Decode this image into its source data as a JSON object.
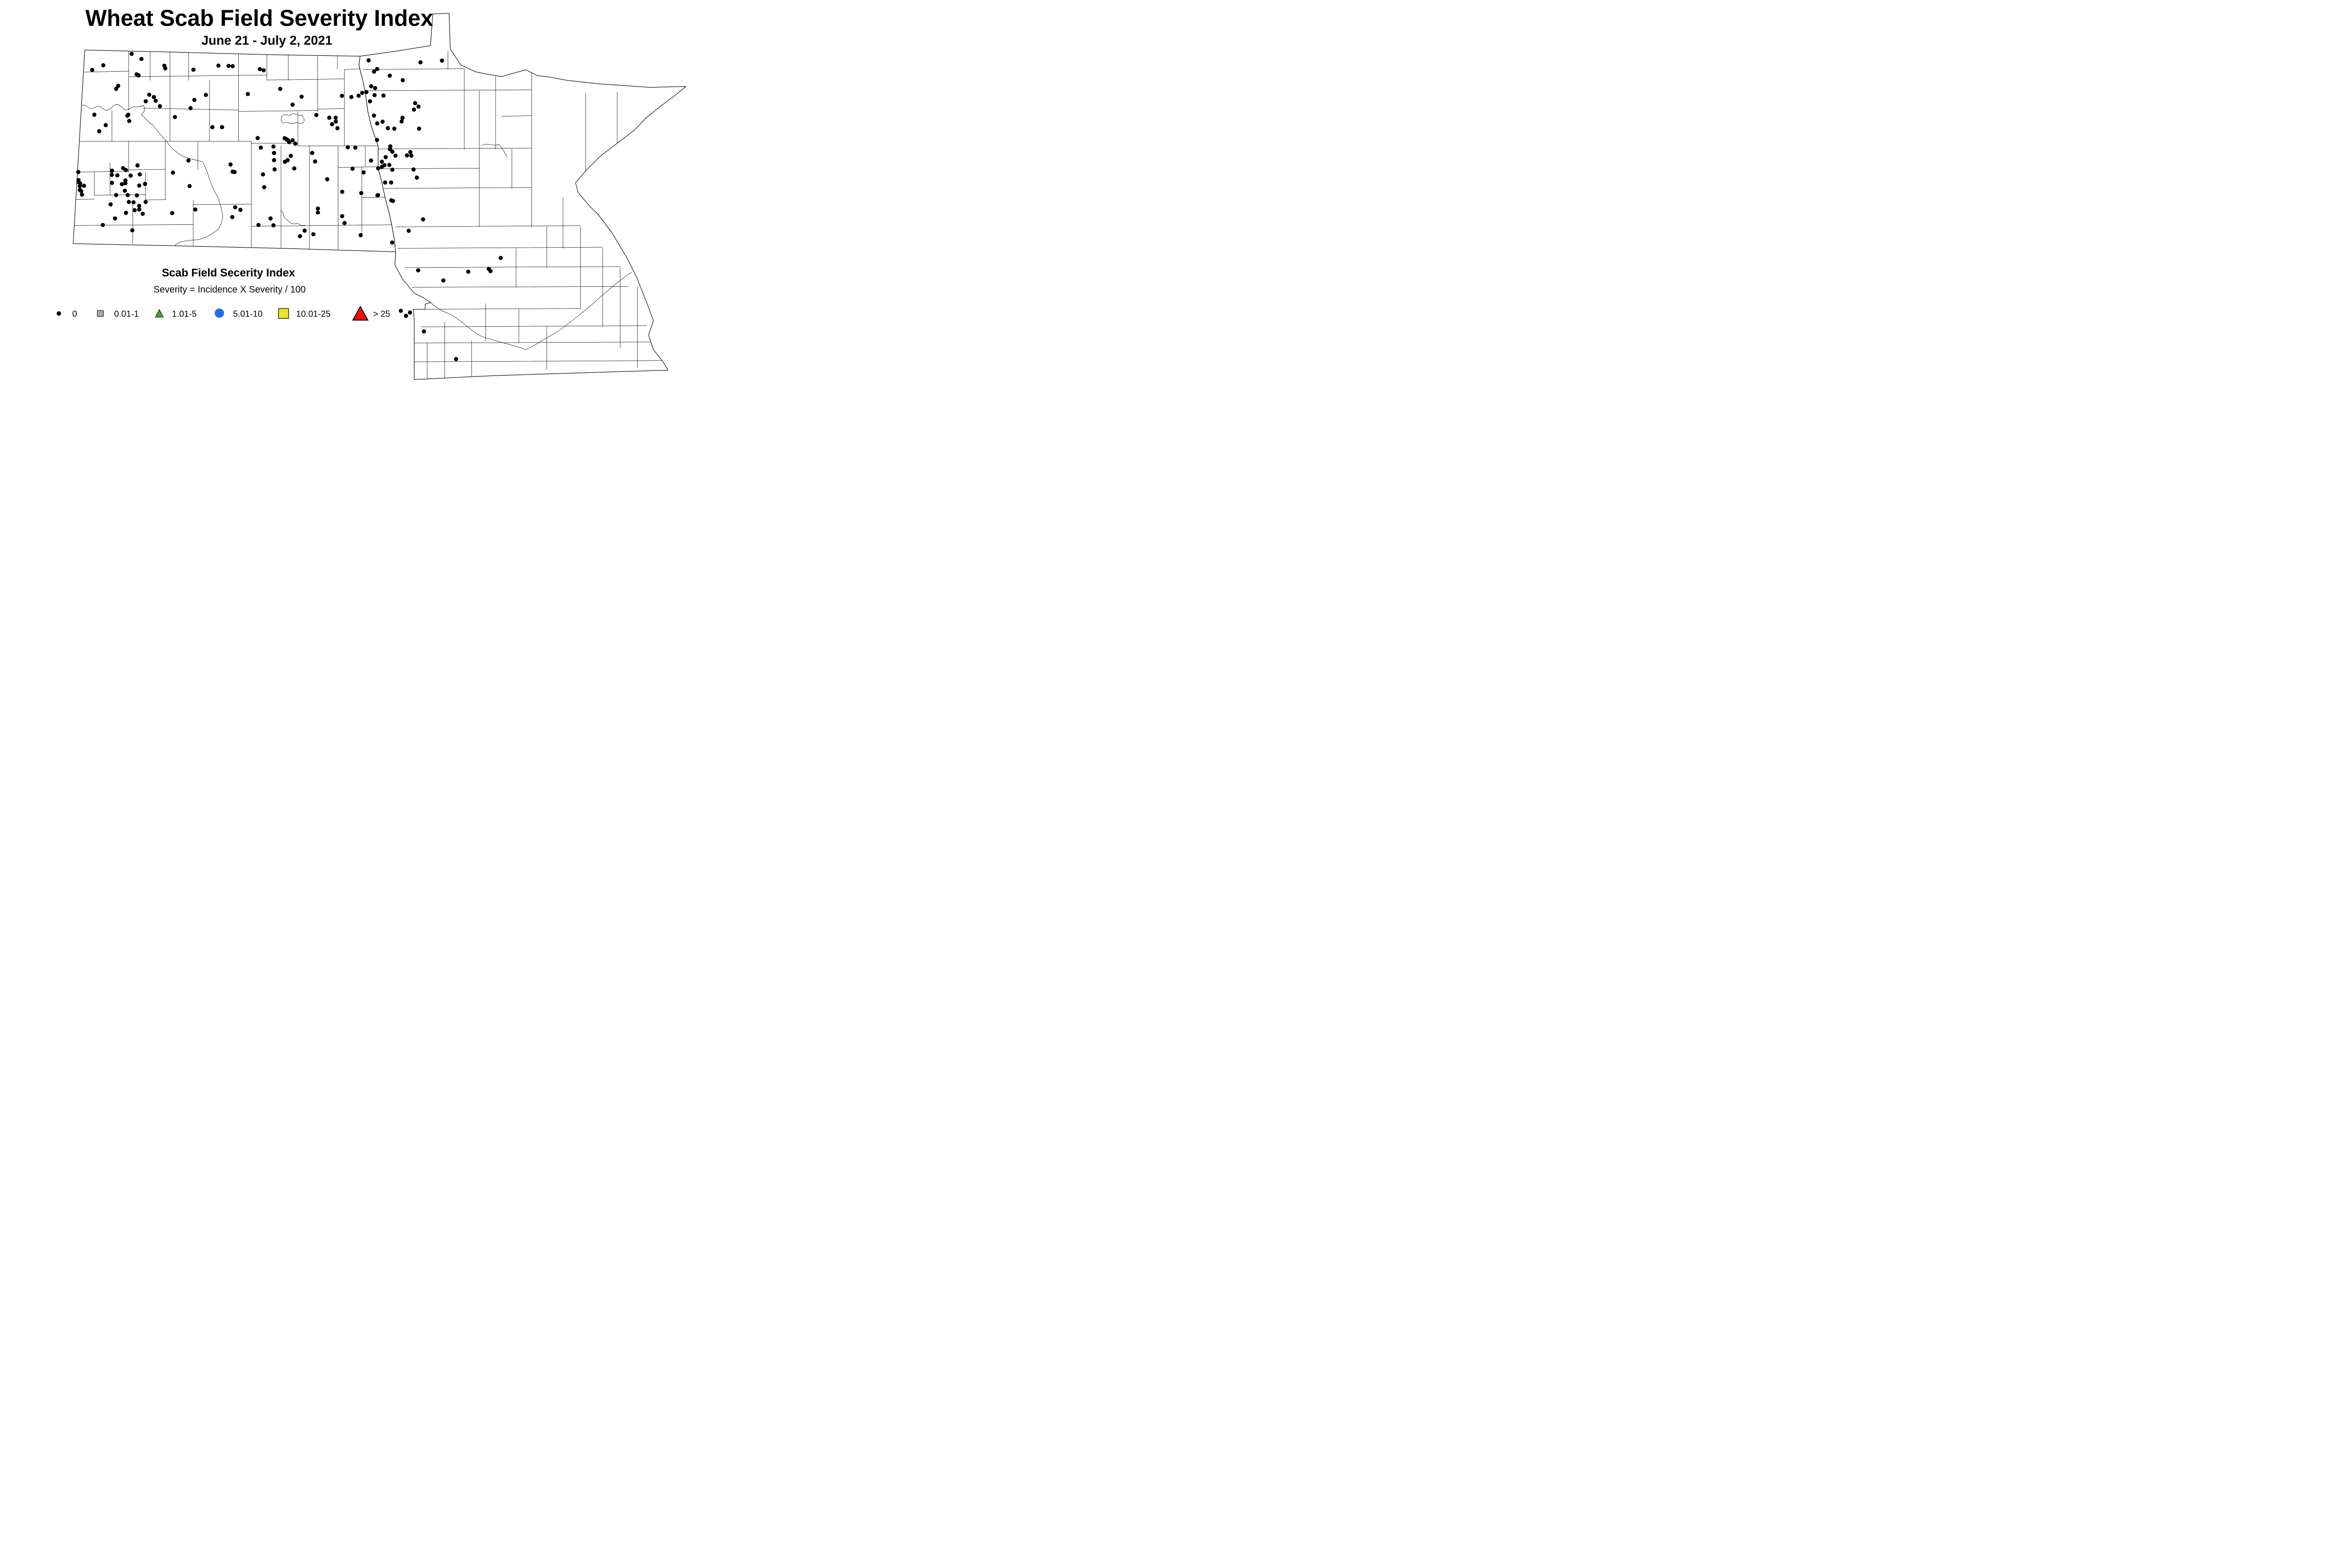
{
  "title": "Wheat Scab Field Severity Index",
  "subtitle": "June 21 - July 2, 2021",
  "legend": {
    "title": "Scab Field Secerity Index",
    "formula": "Severity = Incidence X Severity / 100",
    "items": [
      {
        "label": "0",
        "shape": "dot",
        "color": "#000000"
      },
      {
        "label": "0.01-1",
        "shape": "square",
        "color": "#A9A9A9"
      },
      {
        "label": "1.01-5",
        "shape": "triangle",
        "color": "#46A32E"
      },
      {
        "label": "5.01-10",
        "shape": "circle",
        "color": "#1B6FE8"
      },
      {
        "label": "10.01-25",
        "shape": "square",
        "color": "#E8E824"
      },
      {
        "label": "> 25",
        "shape": "triangle",
        "color": "#FB0905"
      }
    ]
  },
  "map": {
    "point_radius": 18,
    "point_class_label": "0",
    "points": [
      [
        1131,
        463
      ],
      [
        1215,
        507
      ],
      [
        887,
        561
      ],
      [
        792,
        601
      ],
      [
        1412,
        565
      ],
      [
        1420,
        588
      ],
      [
        1173,
        639
      ],
      [
        1190,
        648
      ],
      [
        1662,
        599
      ],
      [
        1877,
        564
      ],
      [
        1964,
        566
      ],
      [
        1999,
        569
      ],
      [
        1015,
        738
      ],
      [
        998,
        764
      ],
      [
        1282,
        814
      ],
      [
        1322,
        834
      ],
      [
        1252,
        871
      ],
      [
        1337,
        866
      ],
      [
        1374,
        913
      ],
      [
        1769,
        816
      ],
      [
        1670,
        859
      ],
      [
        1637,
        930
      ],
      [
        2130,
        808
      ],
      [
        1503,
        1006
      ],
      [
        1102,
        986
      ],
      [
        1094,
        995
      ],
      [
        1110,
        1040
      ],
      [
        908,
        1076
      ],
      [
        852,
        1128
      ],
      [
        810,
        986
      ],
      [
        1825,
        1093
      ],
      [
        1908,
        1093
      ],
      [
        3168,
        519
      ],
      [
        3614,
        536
      ],
      [
        3242,
        593
      ],
      [
        3215,
        616
      ],
      [
        2233,
        594
      ],
      [
        2266,
        604
      ],
      [
        3350,
        650
      ],
      [
        3462,
        689
      ],
      [
        2408,
        764
      ],
      [
        3190,
        741
      ],
      [
        3224,
        757
      ],
      [
        2592,
        831
      ],
      [
        2939,
        824
      ],
      [
        3020,
        834
      ],
      [
        3082,
        823
      ],
      [
        3113,
        798
      ],
      [
        3149,
        791
      ],
      [
        3219,
        818
      ],
      [
        3296,
        821
      ],
      [
        2514,
        900
      ],
      [
        3180,
        871
      ],
      [
        3568,
        887
      ],
      [
        3597,
        916
      ],
      [
        3558,
        942
      ],
      [
        2719,
        989
      ],
      [
        2830,
        1012
      ],
      [
        2885,
        1012
      ],
      [
        3214,
        994
      ],
      [
        3460,
        1013
      ],
      [
        2886,
        1045
      ],
      [
        3288,
        1046
      ],
      [
        3242,
        1061
      ],
      [
        2854,
        1068
      ],
      [
        3452,
        1044
      ],
      [
        2900,
        1102
      ],
      [
        3333,
        1102
      ],
      [
        3389,
        1106
      ],
      [
        3602,
        1106
      ],
      [
        3240,
        1203
      ],
      [
        2214,
        1187
      ],
      [
        2446,
        1188
      ],
      [
        2463,
        1198
      ],
      [
        2475,
        1206
      ],
      [
        2515,
        1206
      ],
      [
        2485,
        1222
      ],
      [
        2538,
        1235
      ],
      [
        2350,
        1260
      ],
      [
        2241,
        1269
      ],
      [
        2989,
        1266
      ],
      [
        3054,
        1269
      ],
      [
        672,
        1479
      ],
      [
        1181,
        1422
      ],
      [
        1057,
        1445
      ],
      [
        1082,
        1462
      ],
      [
        962,
        1467
      ],
      [
        960,
        1503
      ],
      [
        1008,
        1507
      ],
      [
        1122,
        1510
      ],
      [
        1201,
        1499
      ],
      [
        674,
        1548
      ],
      [
        674,
        1565
      ],
      [
        688,
        1577
      ],
      [
        685,
        1600
      ],
      [
        721,
        1597
      ],
      [
        686,
        1633
      ],
      [
        697,
        1643
      ],
      [
        704,
        1673
      ],
      [
        962,
        1572
      ],
      [
        1047,
        1583
      ],
      [
        1077,
        1552
      ],
      [
        1077,
        1575
      ],
      [
        1196,
        1595
      ],
      [
        1246,
        1581
      ],
      [
        1072,
        1640
      ],
      [
        998,
        1677
      ],
      [
        1097,
        1677
      ],
      [
        1176,
        1680
      ],
      [
        1107,
        1736
      ],
      [
        1147,
        1739
      ],
      [
        1251,
        1736
      ],
      [
        950,
        1757
      ],
      [
        1196,
        1770
      ],
      [
        1196,
        1801
      ],
      [
        1157,
        1807
      ],
      [
        1082,
        1830
      ],
      [
        1226,
        1838
      ],
      [
        988,
        1878
      ],
      [
        883,
        1934
      ],
      [
        1137,
        1980
      ],
      [
        1619,
        1380
      ],
      [
        1486,
        1484
      ],
      [
        1629,
        1600
      ],
      [
        1480,
        1832
      ],
      [
        1678,
        1801
      ],
      [
        1981,
        1414
      ],
      [
        1999,
        1476
      ],
      [
        2016,
        1479
      ],
      [
        2021,
        1782
      ],
      [
        2066,
        1804
      ],
      [
        1996,
        1866
      ],
      [
        2355,
        1315
      ],
      [
        2499,
        1340
      ],
      [
        2683,
        1315
      ],
      [
        2355,
        1377
      ],
      [
        2449,
        1391
      ],
      [
        2472,
        1377
      ],
      [
        2708,
        1388
      ],
      [
        2529,
        1448
      ],
      [
        2360,
        1456
      ],
      [
        2260,
        1499
      ],
      [
        2270,
        1609
      ],
      [
        2812,
        1541
      ],
      [
        3030,
        1450
      ],
      [
        3125,
        1482
      ],
      [
        2941,
        1649
      ],
      [
        3105,
        1660
      ],
      [
        3244,
        1680
      ],
      [
        3355,
        1258
      ],
      [
        3352,
        1282
      ],
      [
        3372,
        1304
      ],
      [
        3399,
        1338
      ],
      [
        3315,
        1351
      ],
      [
        3527,
        1307
      ],
      [
        3498,
        1336
      ],
      [
        3535,
        1338
      ],
      [
        3189,
        1380
      ],
      [
        3282,
        1390
      ],
      [
        3304,
        1420
      ],
      [
        3346,
        1418
      ],
      [
        3282,
        1434
      ],
      [
        3250,
        1447
      ],
      [
        3372,
        1459
      ],
      [
        3554,
        1457
      ],
      [
        3583,
        1527
      ],
      [
        3310,
        1569
      ],
      [
        3362,
        1569
      ],
      [
        3249,
        1677
      ],
      [
        3363,
        1722
      ],
      [
        3378,
        1728
      ],
      [
        2732,
        1793
      ],
      [
        2732,
        1827
      ],
      [
        2325,
        1878
      ],
      [
        2941,
        1858
      ],
      [
        2221,
        1934
      ],
      [
        2350,
        1937
      ],
      [
        2961,
        1917
      ],
      [
        3636,
        1886
      ],
      [
        2618,
        1983
      ],
      [
        2578,
        2031
      ],
      [
        2693,
        2014
      ],
      [
        3100,
        2022
      ],
      [
        3513,
        1984
      ],
      [
        3370,
        2085
      ],
      [
        4304,
        2217
      ],
      [
        3594,
        2324
      ],
      [
        4025,
        2336
      ],
      [
        4201,
        2311
      ],
      [
        4216,
        2331
      ],
      [
        3811,
        2411
      ],
      [
        3445,
        2672
      ],
      [
        3524,
        2687
      ],
      [
        3490,
        2715
      ],
      [
        3644,
        2849
      ],
      [
        3920,
        3087
      ],
      [
        3799,
        521
      ]
    ]
  }
}
